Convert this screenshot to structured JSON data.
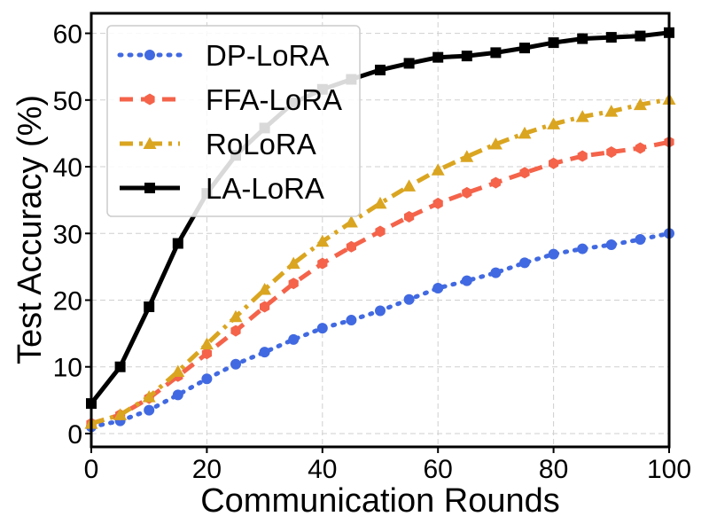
{
  "chart_data": {
    "type": "line",
    "title": "",
    "xlabel": "Communication Rounds",
    "ylabel": "Test Accuracy (%)",
    "xlim": [
      0,
      100
    ],
    "ylim": [
      -2,
      63
    ],
    "xticks": [
      0,
      20,
      40,
      60,
      80,
      100
    ],
    "yticks": [
      0,
      10,
      20,
      30,
      40,
      50,
      60
    ],
    "grid": true,
    "legend_position": "top-left",
    "x": [
      0,
      5,
      10,
      15,
      20,
      25,
      30,
      35,
      40,
      45,
      50,
      55,
      60,
      65,
      70,
      75,
      80,
      85,
      90,
      95,
      100
    ],
    "series": [
      {
        "name": "DP-LoRA",
        "color": "#4169E1",
        "line_style": "dotted",
        "marker": "circle",
        "values": [
          1.0,
          1.9,
          3.5,
          5.8,
          8.2,
          10.4,
          12.2,
          14.1,
          15.8,
          17.0,
          18.4,
          20.1,
          21.8,
          22.9,
          24.1,
          25.6,
          26.9,
          27.7,
          28.3,
          29.1,
          30.0
        ]
      },
      {
        "name": "FFA-LoRA",
        "color": "#F4634A",
        "line_style": "dashed",
        "marker": "hexagon",
        "values": [
          1.5,
          2.8,
          5.3,
          8.6,
          12.0,
          15.4,
          19.0,
          22.5,
          25.5,
          28.0,
          30.3,
          32.5,
          34.5,
          36.1,
          37.6,
          39.1,
          40.5,
          41.6,
          42.2,
          42.8,
          43.7
        ]
      },
      {
        "name": "RoLoRA",
        "color": "#DAA520",
        "line_style": "dashdot",
        "marker": "triangle",
        "values": [
          1.5,
          2.8,
          5.5,
          9.3,
          13.4,
          17.5,
          21.6,
          25.5,
          28.8,
          31.7,
          34.5,
          37.1,
          39.5,
          41.5,
          43.4,
          45.0,
          46.4,
          47.5,
          48.3,
          49.3,
          50.1
        ]
      },
      {
        "name": "LA-LoRA",
        "color": "#000000",
        "line_style": "solid",
        "marker": "square",
        "values": [
          4.5,
          10.0,
          19.0,
          28.5,
          36.0,
          41.7,
          45.8,
          49.6,
          51.6,
          53.1,
          54.5,
          55.5,
          56.4,
          56.6,
          57.1,
          57.8,
          58.6,
          59.2,
          59.4,
          59.6,
          60.1
        ]
      }
    ]
  }
}
